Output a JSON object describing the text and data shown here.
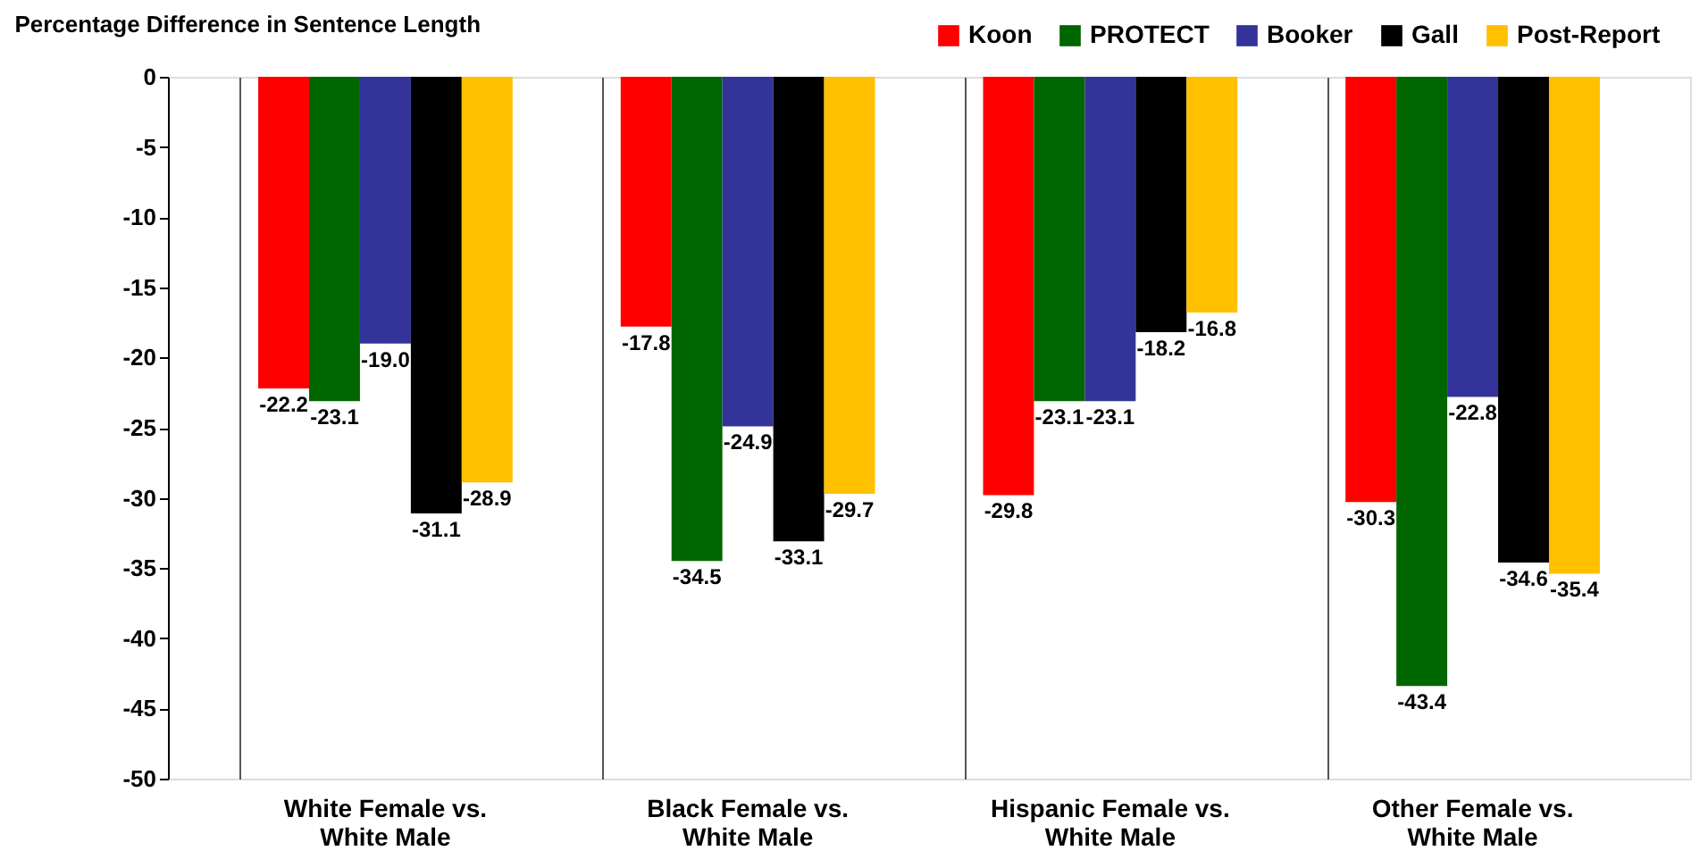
{
  "chart_data": {
    "type": "bar",
    "title": "Percentage Difference in Sentence Length",
    "categories": [
      "White Female vs. White Male",
      "Black Female vs. White Male",
      "Hispanic Female vs. White Male",
      "Other Female vs. White Male"
    ],
    "series": [
      {
        "name": "Koon",
        "color": "#ff0000",
        "values": [
          -22.2,
          -17.8,
          -29.8,
          -30.3
        ]
      },
      {
        "name": "PROTECT",
        "color": "#006600",
        "values": [
          -23.1,
          -34.5,
          -23.1,
          -43.4
        ]
      },
      {
        "name": "Booker",
        "color": "#333399",
        "values": [
          -19.0,
          -24.9,
          -23.1,
          -22.8
        ]
      },
      {
        "name": "Gall",
        "color": "#000000",
        "values": [
          -31.1,
          -33.1,
          -18.2,
          -34.6
        ]
      },
      {
        "name": "Post-Report",
        "color": "#ffc000",
        "values": [
          -28.9,
          -29.7,
          -16.8,
          -35.4
        ]
      }
    ],
    "value_labels": [
      [
        "-22.2",
        "-17.8",
        "-29.8",
        "-30.3"
      ],
      [
        "-23.1",
        "-34.5",
        "-23.1",
        "-43.4"
      ],
      [
        "-19.0",
        "-24.9",
        "-23.1",
        "-22.8"
      ],
      [
        "-31.1",
        "-33.1",
        "-18.2",
        "-34.6"
      ],
      [
        "-28.9",
        "-29.7",
        "-16.8",
        "-35.4"
      ]
    ],
    "ylim": [
      -50,
      0
    ],
    "yticks": [
      -50,
      -45,
      -40,
      -35,
      -30,
      -25,
      -20,
      -15,
      -10,
      -5,
      0
    ],
    "grid": "x",
    "legend": "top right"
  }
}
